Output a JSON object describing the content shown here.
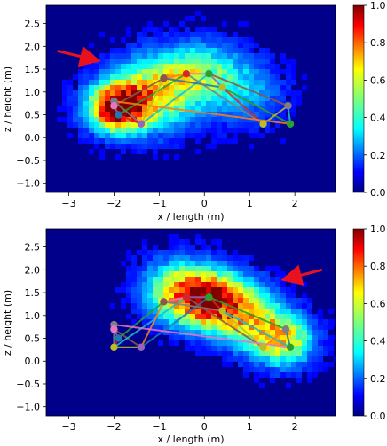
{
  "chart_data": [
    {
      "type": "heatmap",
      "panel": "top",
      "xlabel": "x / length (m)",
      "ylabel": "z / height (m)",
      "xlim": [
        -3.5,
        2.9
      ],
      "ylim": [
        -1.2,
        2.9
      ],
      "x_ticks": [
        -3,
        -2,
        -1,
        0,
        1,
        2
      ],
      "x_tick_labels": [
        "−3",
        "−2",
        "−1",
        "0",
        "1",
        "2"
      ],
      "y_ticks": [
        -1.0,
        -0.5,
        0.0,
        0.5,
        1.0,
        1.5,
        2.0,
        2.5
      ],
      "y_tick_labels": [
        "−1.0",
        "−0.5",
        "0.0",
        "0.5",
        "1.0",
        "1.5",
        "2.0",
        "2.5"
      ],
      "colorbar": {
        "colormap": "jet",
        "range": [
          0.0,
          1.0
        ],
        "ticks": [
          0.0,
          0.2,
          0.4,
          0.6,
          0.8,
          1.0
        ],
        "tick_labels": [
          "0.0",
          "0.2",
          "0.4",
          "0.6",
          "0.8",
          "1.0"
        ]
      },
      "density_peak": {
        "x": -1.9,
        "z": 0.65
      },
      "arrow": {
        "from": {
          "x": -3.25,
          "z": 1.9
        },
        "to": {
          "x": -2.4,
          "z": 1.7
        },
        "color": "#e8111e"
      },
      "skeleton": {
        "points": [
          {
            "x": -2.0,
            "z": 0.8,
            "color": "#7f7f7f"
          },
          {
            "x": -2.0,
            "z": 0.7,
            "color": "#e377c2"
          },
          {
            "x": -1.9,
            "z": 0.5,
            "color": "#1f77b4"
          },
          {
            "x": -1.4,
            "z": 0.3,
            "color": "#9467bd"
          },
          {
            "x": -0.9,
            "z": 1.3,
            "color": "#8c564b"
          },
          {
            "x": -0.4,
            "z": 1.4,
            "color": "#d62728"
          },
          {
            "x": 0.1,
            "z": 1.4,
            "color": "#2ca02c"
          },
          {
            "x": 0.4,
            "z": 1.1,
            "color": "#bcbd22"
          },
          {
            "x": 1.3,
            "z": 0.3,
            "color": "#bcbd22"
          },
          {
            "x": 1.85,
            "z": 0.7,
            "color": "#7f7f7f"
          },
          {
            "x": 1.9,
            "z": 0.3,
            "color": "#2ca02c"
          }
        ]
      }
    },
    {
      "type": "heatmap",
      "panel": "bottom",
      "xlabel": "x / length (m)",
      "ylabel": "z / height (m)",
      "xlim": [
        -3.5,
        2.9
      ],
      "ylim": [
        -1.2,
        2.9
      ],
      "x_ticks": [
        -3,
        -2,
        -1,
        0,
        1,
        2
      ],
      "x_tick_labels": [
        "−3",
        "−2",
        "−1",
        "0",
        "1",
        "2"
      ],
      "y_ticks": [
        -1.0,
        -0.5,
        0.0,
        0.5,
        1.0,
        1.5,
        2.0,
        2.5
      ],
      "y_tick_labels": [
        "−1.0",
        "−0.5",
        "0.0",
        "0.5",
        "1.0",
        "1.5",
        "2.0",
        "2.5"
      ],
      "colorbar": {
        "colormap": "jet",
        "range": [
          0.0,
          1.0
        ],
        "ticks": [
          0.0,
          0.2,
          0.4,
          0.6,
          0.8,
          1.0
        ],
        "tick_labels": [
          "0.0",
          "0.2",
          "0.4",
          "0.6",
          "0.8",
          "1.0"
        ]
      },
      "density_peak": {
        "x": 0.1,
        "z": 1.35
      },
      "arrow": {
        "from": {
          "x": 2.6,
          "z": 2.0
        },
        "to": {
          "x": 1.8,
          "z": 1.8
        },
        "color": "#e8111e"
      },
      "skeleton": {
        "points": [
          {
            "x": -2.0,
            "z": 0.8,
            "color": "#7f7f7f"
          },
          {
            "x": -2.0,
            "z": 0.7,
            "color": "#e377c2"
          },
          {
            "x": -1.9,
            "z": 0.5,
            "color": "#1f77b4"
          },
          {
            "x": -2.0,
            "z": 0.3,
            "color": "#bcbd22"
          },
          {
            "x": -1.4,
            "z": 0.3,
            "color": "#9467bd"
          },
          {
            "x": -0.9,
            "z": 1.3,
            "color": "#8c564b"
          },
          {
            "x": -0.4,
            "z": 1.4,
            "color": "#d62728"
          },
          {
            "x": 0.1,
            "z": 1.4,
            "color": "#2ca02c"
          },
          {
            "x": 0.4,
            "z": 1.1,
            "color": "#bcbd22"
          },
          {
            "x": 1.3,
            "z": 0.3,
            "color": "#bcbd22"
          },
          {
            "x": 1.8,
            "z": 0.7,
            "color": "#7f7f7f"
          },
          {
            "x": 1.9,
            "z": 0.3,
            "color": "#2ca02c"
          }
        ]
      }
    }
  ]
}
